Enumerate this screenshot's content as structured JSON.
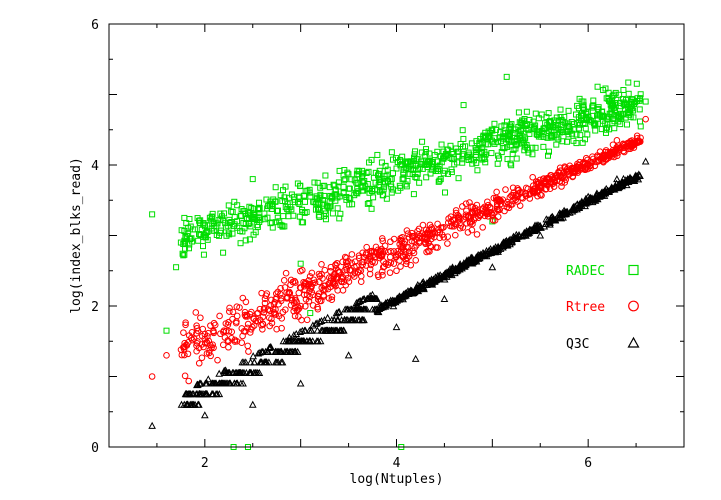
{
  "chart_data": {
    "type": "scatter",
    "title": "",
    "xlabel": "log(Ntuples)",
    "ylabel": "log(index_blks_read)",
    "xlim": [
      1.0,
      7.0
    ],
    "ylim": [
      0,
      6
    ],
    "x_ticks": [
      2,
      4,
      6
    ],
    "y_ticks": [
      0,
      2,
      4,
      6
    ],
    "x_tick_labels": [
      "2",
      "4",
      "6"
    ],
    "y_tick_labels": [
      "0",
      "2",
      "4",
      "6"
    ],
    "grid": false,
    "legend_position": "right",
    "series": [
      {
        "name": "RADEC",
        "marker": "square",
        "color": "#00dd00",
        "trend": {
          "x_min": 1.45,
          "x_max": 6.6,
          "y_at_x_min": 2.85,
          "slope": 0.4
        },
        "points": [
          [
            1.45,
            3.3
          ],
          [
            1.6,
            1.65
          ],
          [
            1.7,
            2.55
          ],
          [
            1.75,
            2.9
          ],
          [
            2.0,
            3.0
          ],
          [
            2.5,
            3.8
          ],
          [
            3.1,
            1.9
          ],
          [
            3.0,
            2.6
          ],
          [
            4.0,
            3.95
          ],
          [
            4.7,
            4.85
          ],
          [
            5.0,
            3.2
          ],
          [
            5.15,
            5.25
          ],
          [
            5.95,
            4.9
          ],
          [
            6.6,
            4.9
          ],
          [
            2.3,
            0.0
          ],
          [
            2.45,
            0.0
          ],
          [
            4.05,
            0.0
          ]
        ]
      },
      {
        "name": "Rtree",
        "marker": "circle",
        "color": "#ff0000",
        "trend": {
          "x_min": 1.45,
          "x_max": 6.6,
          "y_at_x_min": 1.2,
          "slope": 0.62
        },
        "points": [
          [
            1.45,
            1.0
          ],
          [
            1.6,
            1.3
          ],
          [
            2.0,
            1.6
          ],
          [
            3.0,
            2.0
          ],
          [
            4.0,
            2.5
          ],
          [
            5.0,
            3.3
          ],
          [
            6.0,
            4.0
          ],
          [
            6.3,
            4.35
          ],
          [
            6.6,
            4.65
          ]
        ]
      },
      {
        "name": "Q3C",
        "marker": "triangle",
        "color": "#000000",
        "trend": {
          "x_min": 1.45,
          "x_max": 6.6,
          "y_at_x_min": 0.3,
          "slope": 0.7
        },
        "points": [
          [
            1.45,
            0.3
          ],
          [
            2.0,
            0.45
          ],
          [
            2.5,
            0.6
          ],
          [
            3.0,
            0.9
          ],
          [
            3.5,
            1.3
          ],
          [
            4.0,
            1.7
          ],
          [
            4.2,
            1.25
          ],
          [
            4.5,
            2.1
          ],
          [
            5.0,
            2.55
          ],
          [
            5.5,
            3.0
          ],
          [
            6.0,
            3.55
          ],
          [
            6.3,
            3.8
          ],
          [
            6.6,
            4.05
          ]
        ]
      }
    ]
  }
}
